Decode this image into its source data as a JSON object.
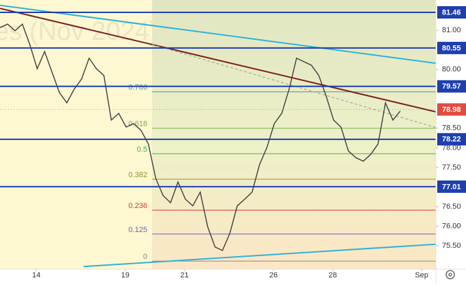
{
  "chart_data": {
    "type": "line",
    "watermark": "es (Nov 2024)",
    "x": [
      -1.22,
      -0.97,
      -0.72,
      -0.47,
      -0.22,
      0.03,
      0.28,
      0.53,
      0.78,
      1.03,
      1.28,
      1.53,
      1.78,
      2.03,
      2.28,
      2.53,
      2.78,
      3.03,
      3.28,
      3.53,
      3.78,
      4.03,
      4.28,
      4.53,
      4.78,
      5.03,
      5.28,
      5.53,
      5.78,
      6.03,
      6.28,
      6.53,
      6.78,
      7.03,
      7.28,
      7.53,
      7.78,
      8.03,
      8.28,
      8.53,
      8.78,
      9.03,
      9.28,
      9.53,
      9.78,
      10.03,
      10.28,
      10.53,
      10.78,
      11.03,
      11.28,
      11.53,
      11.78,
      12.03,
      12.28
    ],
    "series": [
      {
        "color": "#3d3d3d",
        "values": [
          81.07,
          81.16,
          80.99,
          81.16,
          80.64,
          80.02,
          80.46,
          79.93,
          79.41,
          79.15,
          79.5,
          79.76,
          80.29,
          80.02,
          79.85,
          78.71,
          78.88,
          78.53,
          78.62,
          78.45,
          78.1,
          77.22,
          76.78,
          76.6,
          77.13,
          76.69,
          76.52,
          76.87,
          75.99,
          75.47,
          75.38,
          75.82,
          76.52,
          76.69,
          76.87,
          77.57,
          78.01,
          78.62,
          78.88,
          79.5,
          80.29,
          80.2,
          80.11,
          79.85,
          79.32,
          78.71,
          78.53,
          77.92,
          77.75,
          77.66,
          77.83,
          78.1,
          79.15,
          78.71,
          78.94
        ]
      }
    ],
    "xlim": [
      -1.225,
      13.48
    ],
    "xticks": [
      {
        "value": 0,
        "label": "14"
      },
      {
        "value": 3,
        "label": "19"
      },
      {
        "value": 5,
        "label": "21"
      },
      {
        "value": 8,
        "label": "26"
      },
      {
        "value": 10,
        "label": "28"
      },
      {
        "value": 13,
        "label": "Sep"
      }
    ],
    "ylim": [
      74.904,
      81.775
    ],
    "yticks": [
      {
        "value": 81,
        "label": "81.00"
      },
      {
        "value": 80,
        "label": "80.00"
      },
      {
        "value": 78.5,
        "label": "78.50"
      },
      {
        "value": 78,
        "label": "78.00"
      },
      {
        "value": 77.5,
        "label": "77.50"
      },
      {
        "value": 76.5,
        "label": "76.50"
      },
      {
        "value": 76,
        "label": "76.00"
      },
      {
        "value": 75.5,
        "label": "75.50"
      }
    ],
    "levels": {
      "values": [
        81.46,
        80.55,
        79.57,
        78.22,
        77.01
      ],
      "color": "#1f3fae"
    },
    "last_price": {
      "value": 78.98,
      "color": "#e34b41"
    },
    "fib": {
      "start": 3.907,
      "ratios": [
        0.786,
        0.618,
        0.5,
        0.382,
        0.236,
        0.125,
        0
      ],
      "prices": [
        79.43,
        78.5,
        77.85,
        77.2,
        76.41,
        75.8,
        75.11
      ],
      "colors": [
        "#5b8f9a",
        "#7ab04a",
        "#49b049",
        "#8a9a2c",
        "#d23b33",
        "#6e64b8",
        "#8a8a8a"
      ]
    },
    "trendlines": [
      {
        "color": "#2fb3d6",
        "dashed": false,
        "x": [
          -1.225,
          13.48
        ],
        "y": [
          81.64,
          80.16
        ]
      },
      {
        "color": "#7a1f1f",
        "dashed": false,
        "x": [
          -1.225,
          13.48
        ],
        "y": [
          81.56,
          78.92
        ]
      },
      {
        "color": "#2fb3d6",
        "dashed": false,
        "x": [
          1.595,
          13.48
        ],
        "y": [
          74.97,
          75.54
        ]
      },
      {
        "color": "#9a9a9a",
        "dashed": true,
        "x": [
          3.907,
          13.48
        ],
        "y": [
          80.64,
          78.52
        ]
      }
    ]
  }
}
